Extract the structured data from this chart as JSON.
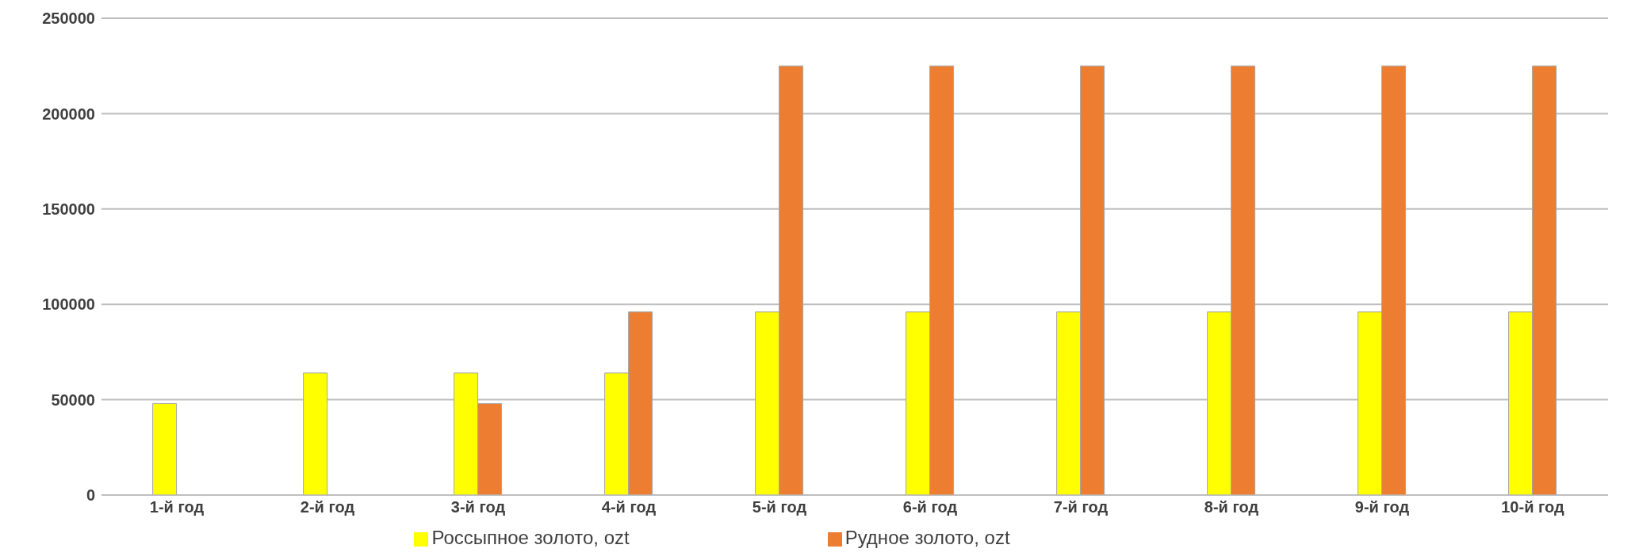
{
  "chart_data": {
    "type": "bar",
    "categories": [
      "1-й год",
      "2-й год",
      "3-й год",
      "4-й год",
      "5-й год",
      "6-й год",
      "7-й год",
      "8-й год",
      "9-й год",
      "10-й год"
    ],
    "series": [
      {
        "name": "Россыпное золото, ozt",
        "color": "#ffff00",
        "values": [
          48000,
          64000,
          64000,
          64000,
          96000,
          96000,
          96000,
          96000,
          96000,
          96000
        ]
      },
      {
        "name": "Рудное золото, ozt",
        "color": "#ed7d31",
        "values": [
          null,
          null,
          48000,
          96000,
          225000,
          225000,
          225000,
          225000,
          225000,
          225000
        ]
      }
    ],
    "ylim": [
      0,
      250000
    ],
    "yticks": [
      0,
      50000,
      100000,
      150000,
      200000,
      250000
    ],
    "grid": "y",
    "legend": "bottom"
  }
}
